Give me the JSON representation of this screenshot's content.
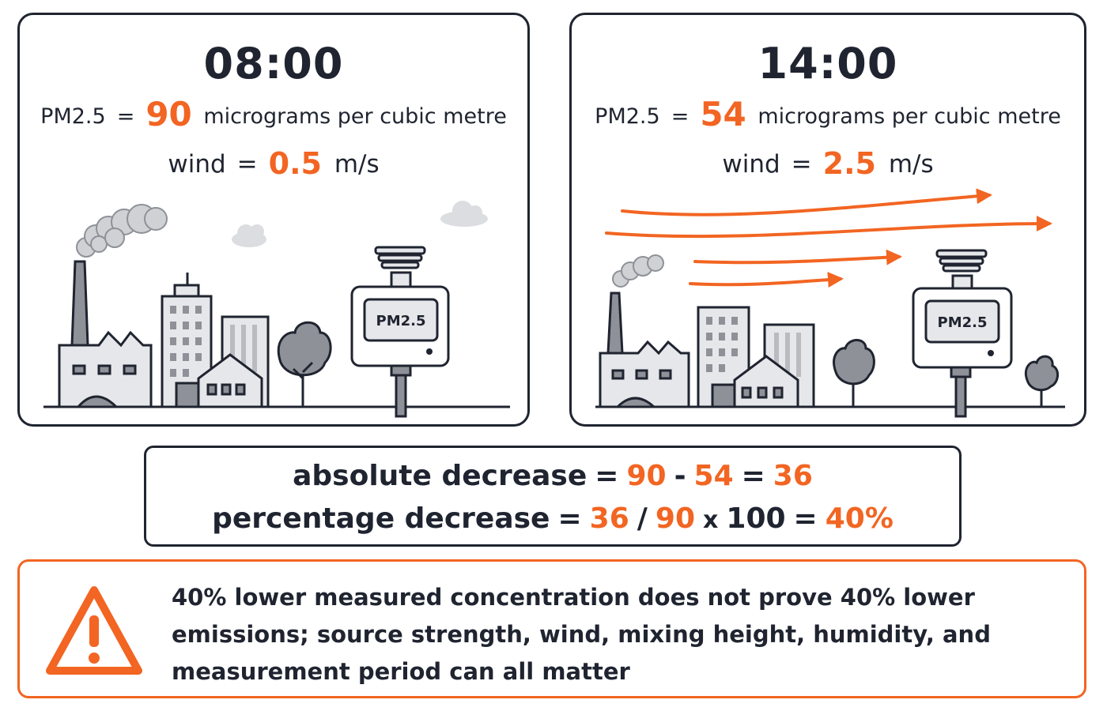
{
  "panels": [
    {
      "time": "08:00",
      "pm_label": "PM2.5",
      "equals": "=",
      "pm_value": "90",
      "pm_unit": "micrograms per cubic metre",
      "wind_label": "wind",
      "wind_value": "0.5",
      "wind_unit": "m/s",
      "sensor_label": "PM2.5"
    },
    {
      "time": "14:00",
      "pm_label": "PM2.5",
      "equals": "=",
      "pm_value": "54",
      "pm_unit": "micrograms per cubic metre",
      "wind_label": "wind",
      "wind_value": "2.5",
      "wind_unit": "m/s",
      "sensor_label": "PM2.5"
    }
  ],
  "calculation": {
    "line1": {
      "label": "absolute decrease",
      "eq": "=",
      "a": "90",
      "minus": "-",
      "b": "54",
      "eq2": "=",
      "result": "36"
    },
    "line2": {
      "label": "percentage decrease",
      "eq": "=",
      "a": "36",
      "slash": "/",
      "b": "90",
      "times": "x",
      "c": "100",
      "eq2": "=",
      "result": "40%"
    }
  },
  "warning": {
    "icon": "warning-triangle-icon",
    "text": "40% lower measured concentration does not prove 40% lower emissions; source strength, wind, mixing height, humidity, and measurement period can all matter"
  },
  "colors": {
    "accent": "#f26522",
    "ink": "#1f2430",
    "building": "#e6e7ea",
    "building_dark": "#8e9198",
    "smoke": "#cfd1d5"
  }
}
